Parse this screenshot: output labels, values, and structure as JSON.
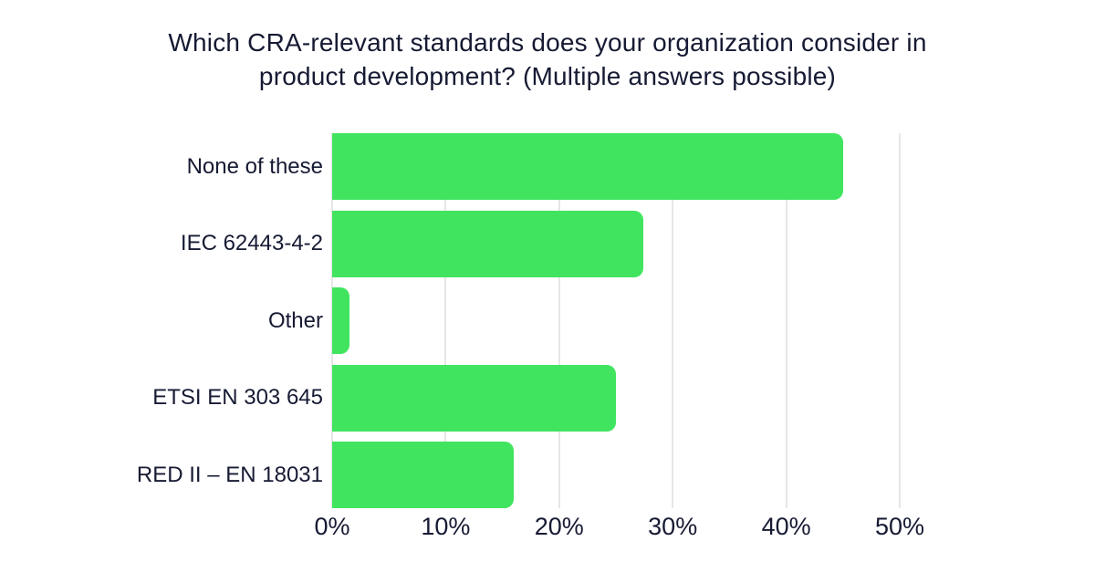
{
  "chart_data": {
    "type": "bar",
    "orientation": "horizontal",
    "title": "Which CRA-relevant standards does your organization consider in product development? (Multiple answers possible)",
    "title_lines": [
      "Which CRA-relevant standards does your organization consider in",
      "product development? (Multiple answers possible)"
    ],
    "categories": [
      "None of these",
      "IEC 62443-4-2",
      "Other",
      "ETSI EN 303 645",
      "RED II – EN 18031"
    ],
    "values": [
      45,
      27.4,
      1.5,
      25,
      16
    ],
    "xlabel": "",
    "ylabel": "",
    "xlim": [
      0,
      50
    ],
    "xticks": [
      0,
      10,
      20,
      30,
      40,
      50
    ],
    "xtick_labels": [
      "0%",
      "10%",
      "20%",
      "30%",
      "40%",
      "50%"
    ],
    "grid": "vertical-gridlines-on",
    "legend": "none",
    "colors": {
      "bar": "#41E45F",
      "text": "#161A33",
      "gridline": "#E6E6E6",
      "background": "#FFFFFF"
    }
  }
}
